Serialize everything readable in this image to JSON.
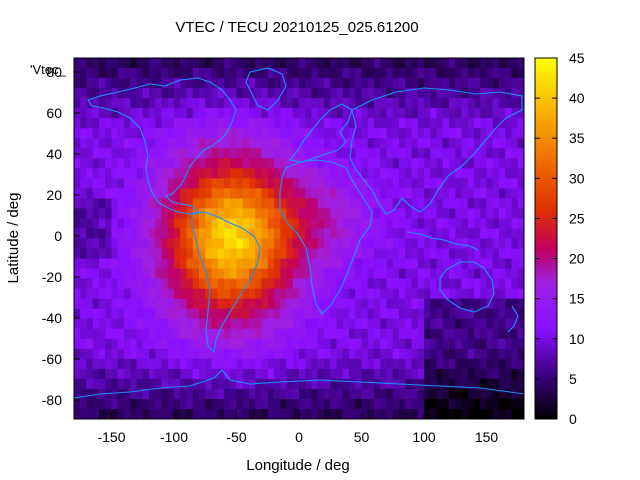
{
  "chart_data": {
    "type": "heatmap",
    "title": "VTEC / TECU 20210125_025.61200",
    "xlabel": "Longitude / deg",
    "ylabel": "Latitude / deg",
    "key_label": "'Vtec_",
    "xlim": [
      -180,
      180
    ],
    "ylim": [
      -90,
      90
    ],
    "x_ticks": [
      -150,
      -100,
      -50,
      0,
      50,
      100,
      150
    ],
    "y_ticks": [
      -80,
      -60,
      -40,
      -20,
      0,
      20,
      40,
      60,
      80
    ],
    "colorbar": {
      "min": 0,
      "max": 45,
      "ticks": [
        0,
        5,
        10,
        15,
        20,
        25,
        30,
        35,
        40,
        45
      ]
    },
    "peak": {
      "lon": -55,
      "lat": 0,
      "value": 42
    },
    "background_value": 10,
    "overlay": "coastlines"
  },
  "palette": {
    "stops": [
      "#000000",
      "#3b0080",
      "#8a10ff",
      "#a020e0",
      "#c00060",
      "#e03000",
      "#f07000",
      "#f8b000",
      "#ffff00"
    ],
    "coastline": "#1e90ff"
  }
}
